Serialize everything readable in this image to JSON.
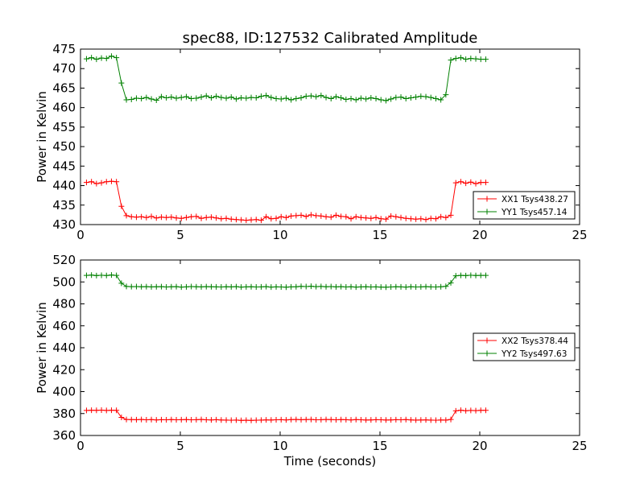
{
  "chart_data": {
    "title": "spec88, ID:127532 Calibrated Amplitude",
    "xlabel": "Time (seconds)",
    "x": [
      0.3,
      0.55,
      0.8,
      1.05,
      1.3,
      1.55,
      1.8,
      2.05,
      2.3,
      2.55,
      2.8,
      3.05,
      3.3,
      3.55,
      3.8,
      4.05,
      4.3,
      4.55,
      4.8,
      5.05,
      5.3,
      5.55,
      5.8,
      6.05,
      6.3,
      6.55,
      6.8,
      7.05,
      7.3,
      7.55,
      7.8,
      8.05,
      8.3,
      8.55,
      8.8,
      9.05,
      9.3,
      9.55,
      9.8,
      10.05,
      10.3,
      10.55,
      10.8,
      11.05,
      11.3,
      11.55,
      11.8,
      12.05,
      12.3,
      12.55,
      12.8,
      13.05,
      13.3,
      13.55,
      13.8,
      14.05,
      14.3,
      14.55,
      14.8,
      15.05,
      15.3,
      15.55,
      15.8,
      16.05,
      16.3,
      16.55,
      16.8,
      17.05,
      17.3,
      17.55,
      17.8,
      18.05,
      18.3,
      18.55,
      18.8,
      19.05,
      19.3,
      19.55,
      19.8,
      20.05,
      20.3
    ],
    "charts": [
      {
        "type": "line",
        "ylabel": "Power in Kelvin",
        "xlim": [
          0,
          25
        ],
        "ylim": [
          430,
          475
        ],
        "xticks": [
          "0",
          "5",
          "10",
          "15",
          "20",
          "25"
        ],
        "yticks": [
          "430",
          "435",
          "440",
          "445",
          "450",
          "455",
          "460",
          "465",
          "470",
          "475"
        ],
        "legend_position": "lower-right",
        "series": [
          {
            "name": "XX1 Tsys438.27",
            "color": "#ff0000",
            "values": [
              440.8,
              441.0,
              440.5,
              440.7,
              441.0,
              441.1,
              441.0,
              434.7,
              432.3,
              432.0,
              431.9,
              432.0,
              431.8,
              432.1,
              431.7,
              431.9,
              431.8,
              431.9,
              431.7,
              431.6,
              431.8,
              432.0,
              432.1,
              431.6,
              431.8,
              431.9,
              431.7,
              431.5,
              431.6,
              431.4,
              431.3,
              431.2,
              431.1,
              431.2,
              431.3,
              431.1,
              432.0,
              431.5,
              431.6,
              432.0,
              431.8,
              432.2,
              432.3,
              432.4,
              432.1,
              432.5,
              432.3,
              432.2,
              432.0,
              431.9,
              432.4,
              432.1,
              432.0,
              431.5,
              432.0,
              431.8,
              431.7,
              431.6,
              431.8,
              431.5,
              431.4,
              432.2,
              432.0,
              431.8,
              431.6,
              431.5,
              431.4,
              431.5,
              431.3,
              431.6,
              431.5,
              432.0,
              431.8,
              432.4,
              440.7,
              441.0,
              440.6,
              440.9,
              440.5,
              440.8,
              440.8
            ]
          },
          {
            "name": "YY1 Tsys457.14",
            "color": "#008000",
            "values": [
              472.5,
              472.8,
              472.4,
              472.7,
              472.6,
              473.2,
              472.8,
              466.3,
              462.0,
              462.1,
              462.4,
              462.3,
              462.6,
              462.2,
              461.9,
              462.8,
              462.5,
              462.7,
              462.4,
              462.6,
              462.8,
              462.3,
              462.4,
              462.7,
              463.0,
              462.5,
              462.9,
              462.6,
              462.4,
              462.7,
              462.2,
              462.5,
              462.4,
              462.6,
              462.5,
              462.9,
              463.1,
              462.6,
              462.3,
              462.2,
              462.4,
              462.0,
              462.3,
              462.5,
              462.9,
              463.0,
              462.8,
              463.1,
              462.6,
              462.3,
              462.8,
              462.5,
              462.1,
              462.3,
              462.0,
              462.4,
              462.2,
              462.5,
              462.3,
              462.0,
              461.8,
              462.2,
              462.6,
              462.7,
              462.3,
              462.5,
              462.7,
              462.9,
              462.8,
              462.6,
              462.3,
              462.0,
              463.3,
              472.2,
              472.6,
              472.8,
              472.4,
              472.6,
              472.5,
              472.4,
              472.4
            ]
          }
        ]
      },
      {
        "type": "line",
        "ylabel": "Power in Kelvin",
        "xlim": [
          0,
          25
        ],
        "ylim": [
          360,
          520
        ],
        "xticks": [
          "0",
          "5",
          "10",
          "15",
          "20",
          "25"
        ],
        "yticks": [
          "360",
          "380",
          "400",
          "420",
          "440",
          "460",
          "480",
          "500",
          "520"
        ],
        "legend_position": "center-right",
        "series": [
          {
            "name": "XX2 Tsys378.44",
            "color": "#ff0000",
            "values": [
              382.8,
              383.0,
              382.9,
              383.1,
              382.8,
              383.0,
              382.9,
              376.5,
              374.6,
              374.5,
              374.4,
              374.6,
              374.3,
              374.5,
              374.2,
              374.4,
              374.3,
              374.5,
              374.3,
              374.4,
              374.5,
              374.3,
              374.4,
              374.6,
              374.3,
              374.2,
              374.4,
              374.1,
              374.0,
              373.9,
              374.0,
              373.8,
              373.9,
              373.8,
              373.9,
              374.0,
              374.2,
              374.1,
              374.3,
              374.4,
              374.2,
              374.5,
              374.6,
              374.4,
              374.5,
              374.6,
              374.3,
              374.4,
              374.6,
              374.5,
              374.3,
              374.5,
              374.4,
              374.2,
              374.5,
              374.3,
              374.1,
              374.2,
              374.4,
              374.3,
              374.1,
              374.2,
              374.4,
              374.3,
              374.5,
              374.2,
              374.0,
              374.1,
              374.2,
              374.0,
              373.9,
              374.1,
              374.0,
              374.6,
              382.5,
              383.0,
              382.6,
              382.8,
              382.7,
              382.9,
              382.9
            ]
          },
          {
            "name": "YY2 Tsys497.63",
            "color": "#008000",
            "values": [
              506.0,
              506.2,
              505.8,
              506.1,
              505.9,
              506.3,
              506.0,
              498.8,
              495.9,
              495.7,
              495.8,
              495.6,
              495.7,
              495.5,
              495.6,
              495.7,
              495.4,
              495.6,
              495.7,
              495.3,
              495.5,
              495.8,
              495.6,
              495.5,
              495.7,
              495.6,
              495.5,
              495.4,
              495.6,
              495.5,
              495.7,
              495.3,
              495.5,
              495.6,
              495.4,
              495.5,
              495.7,
              495.3,
              495.5,
              495.4,
              495.2,
              495.5,
              495.6,
              496.0,
              495.8,
              496.1,
              495.7,
              495.9,
              495.6,
              495.8,
              495.5,
              495.7,
              495.4,
              495.6,
              495.3,
              495.5,
              495.6,
              495.4,
              495.5,
              495.3,
              495.2,
              495.4,
              495.6,
              495.5,
              495.3,
              495.6,
              495.4,
              495.5,
              495.7,
              495.5,
              495.4,
              495.6,
              496.0,
              499.2,
              505.6,
              506.0,
              505.8,
              506.1,
              505.9,
              506.0,
              506.0
            ]
          }
        ]
      }
    ]
  }
}
